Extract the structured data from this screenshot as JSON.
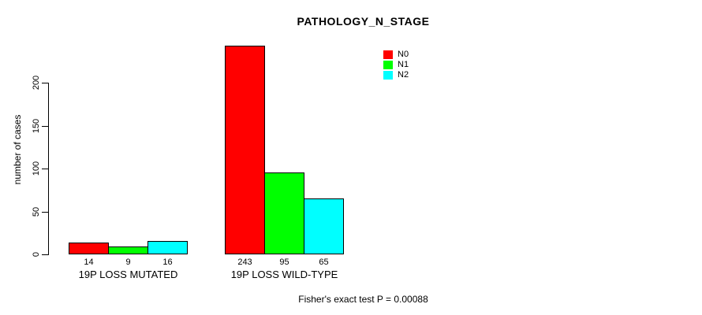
{
  "chart_data": {
    "type": "bar",
    "title": "PATHOLOGY_N_STAGE",
    "ylabel": "number of cases",
    "xlabel": "",
    "axis_range": [
      0,
      200
    ],
    "ylim": [
      0,
      245
    ],
    "yticks": [
      0,
      50,
      100,
      150,
      200
    ],
    "grid": false,
    "legend_position": "top-right",
    "categories": [
      "19P LOSS MUTATED",
      "19P LOSS WILD-TYPE"
    ],
    "series": [
      {
        "name": "N0",
        "color": "#FF0000",
        "values": [
          14,
          243
        ]
      },
      {
        "name": "N1",
        "color": "#00FF00",
        "values": [
          9,
          95
        ]
      },
      {
        "name": "N2",
        "color": "#00FFFF",
        "values": [
          16,
          65
        ]
      }
    ],
    "bar_value_labels": [
      [
        14,
        9,
        16
      ],
      [
        243,
        95,
        65
      ]
    ],
    "footnote": "Fisher's exact test P = 0.00088",
    "colors": {
      "background": "#FFFFFF",
      "axis": "#000000",
      "bar_border": "#000000",
      "text": "#000000"
    }
  }
}
